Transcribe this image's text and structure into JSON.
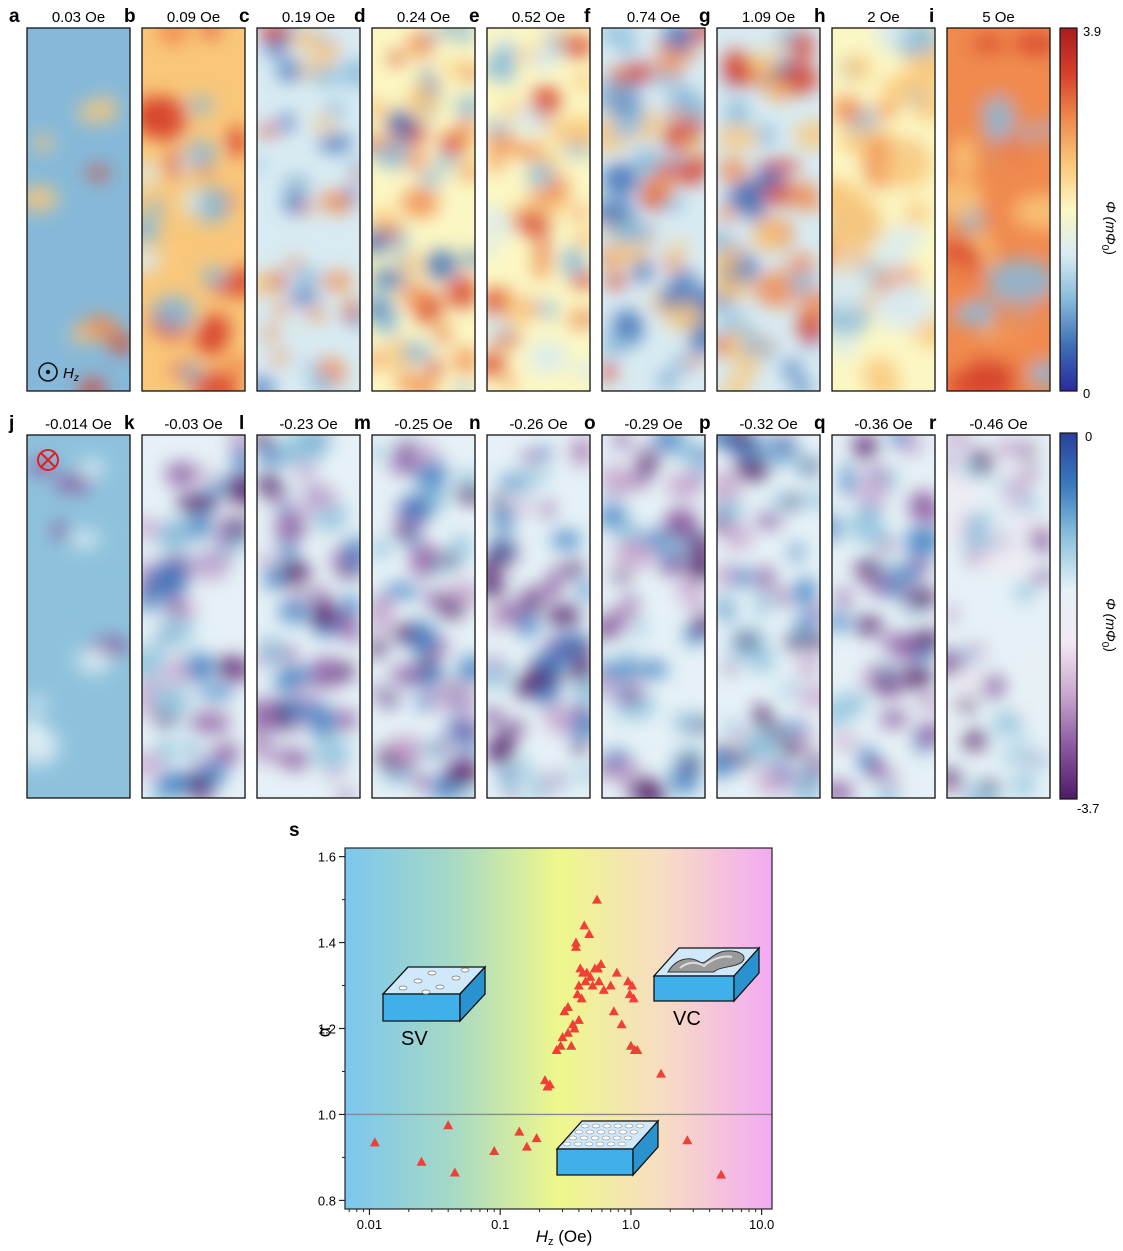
{
  "panels_top": [
    {
      "letter": "a",
      "field": "0.03 Oe"
    },
    {
      "letter": "b",
      "field": "0.09 Oe"
    },
    {
      "letter": "c",
      "field": "0.19 Oe"
    },
    {
      "letter": "d",
      "field": "0.24 Oe"
    },
    {
      "letter": "e",
      "field": "0.52 Oe"
    },
    {
      "letter": "f",
      "field": "0.74 Oe"
    },
    {
      "letter": "g",
      "field": "1.09 Oe"
    },
    {
      "letter": "h",
      "field": "2 Oe"
    },
    {
      "letter": "i",
      "field": "5 Oe"
    }
  ],
  "panels_bottom": [
    {
      "letter": "j",
      "field": "-0.014 Oe"
    },
    {
      "letter": "k",
      "field": "-0.03 Oe"
    },
    {
      "letter": "l",
      "field": "-0.23 Oe"
    },
    {
      "letter": "m",
      "field": "-0.25 Oe"
    },
    {
      "letter": "n",
      "field": "-0.26 Oe"
    },
    {
      "letter": "o",
      "field": "-0.29 Oe"
    },
    {
      "letter": "p",
      "field": "-0.32 Oe"
    },
    {
      "letter": "q",
      "field": "-0.36 Oe"
    },
    {
      "letter": "r",
      "field": "-0.46 Oe"
    }
  ],
  "hz_label": "H",
  "hz_sub": "z",
  "colorbar_top": {
    "max": "3.9",
    "min": "0",
    "label": "Φ (mΦ",
    "label_sub": "0",
    "label_end": ")",
    "colors": [
      "#2b2a9e",
      "#3d6fb5",
      "#86b9d9",
      "#d8ebf2",
      "#fbf7c4",
      "#f9c77a",
      "#f08a4e",
      "#d6402c",
      "#a81c1f"
    ]
  },
  "colorbar_bottom": {
    "max": "0",
    "min": "-3.7",
    "label": "Φ (mΦ",
    "label_sub": "0",
    "label_end": ")",
    "colors": [
      "#2a3f9b",
      "#3a7bbf",
      "#8ec2dc",
      "#e5f1f6",
      "#f2e9f2",
      "#c9a7cf",
      "#8a58a0",
      "#4e1b66"
    ]
  },
  "chart_data": {
    "type": "scatter",
    "panel_letter": "s",
    "xlabel": "H",
    "xlabel_sub": "z",
    "xlabel_unit": " (Oe)",
    "ylabel": "α",
    "xscale": "log",
    "xlim": [
      0.0065,
      12
    ],
    "ylim": [
      0.78,
      1.62
    ],
    "xticks": [
      "0.01",
      "0.1",
      "1.0",
      "10.0"
    ],
    "xtick_values": [
      0.01,
      0.1,
      1.0,
      10.0
    ],
    "yticks": [
      "0.8",
      "1.0",
      "1.2",
      "1.4",
      "1.6"
    ],
    "ytick_values": [
      0.8,
      1.0,
      1.2,
      1.4,
      1.6
    ],
    "reference_line": 1.0,
    "marker_color": "#f04035",
    "background_gradient": [
      "#7cc6ee",
      "#a6d9c6",
      "#eef78c",
      "#f7dcc4",
      "#f3aaf3"
    ],
    "region_labels": [
      "SV",
      "VC"
    ],
    "points": [
      [
        0.011,
        0.935
      ],
      [
        0.025,
        0.89
      ],
      [
        0.04,
        0.975
      ],
      [
        0.045,
        0.865
      ],
      [
        0.09,
        0.915
      ],
      [
        0.14,
        0.96
      ],
      [
        0.16,
        0.925
      ],
      [
        0.19,
        0.945
      ],
      [
        0.22,
        1.08
      ],
      [
        0.23,
        1.065
      ],
      [
        0.24,
        1.07
      ],
      [
        0.27,
        1.15
      ],
      [
        0.29,
        1.16
      ],
      [
        0.3,
        1.18
      ],
      [
        0.31,
        1.24
      ],
      [
        0.33,
        1.19
      ],
      [
        0.33,
        1.25
      ],
      [
        0.35,
        1.16
      ],
      [
        0.36,
        1.21
      ],
      [
        0.37,
        1.2
      ],
      [
        0.38,
        1.39
      ],
      [
        0.38,
        1.4
      ],
      [
        0.39,
        1.28
      ],
      [
        0.4,
        1.3
      ],
      [
        0.4,
        1.22
      ],
      [
        0.41,
        1.34
      ],
      [
        0.42,
        1.27
      ],
      [
        0.43,
        1.33
      ],
      [
        0.44,
        1.44
      ],
      [
        0.45,
        1.31
      ],
      [
        0.46,
        1.33
      ],
      [
        0.48,
        1.42
      ],
      [
        0.49,
        1.32
      ],
      [
        0.51,
        1.3
      ],
      [
        0.53,
        1.34
      ],
      [
        0.55,
        1.5
      ],
      [
        0.56,
        1.34
      ],
      [
        0.57,
        1.31
      ],
      [
        0.59,
        1.35
      ],
      [
        0.62,
        1.29
      ],
      [
        0.7,
        1.3
      ],
      [
        0.74,
        1.24
      ],
      [
        0.78,
        1.33
      ],
      [
        0.85,
        1.21
      ],
      [
        0.95,
        1.31
      ],
      [
        0.98,
        1.28
      ],
      [
        1.0,
        1.16
      ],
      [
        1.02,
        1.3
      ],
      [
        1.05,
        1.27
      ],
      [
        1.07,
        1.15
      ],
      [
        1.12,
        1.15
      ],
      [
        1.7,
        1.095
      ],
      [
        2.7,
        0.94
      ],
      [
        4.9,
        0.86
      ]
    ]
  }
}
